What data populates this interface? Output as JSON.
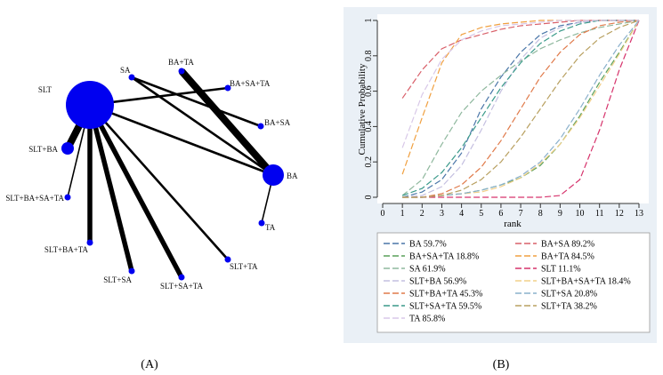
{
  "chart_data": [
    {
      "type": "network",
      "nodes": [
        {
          "id": "SLT",
          "label": "SLT",
          "size": "largest"
        },
        {
          "id": "SA",
          "label": "SA",
          "size": "small"
        },
        {
          "id": "BA+TA",
          "label": "BA+TA",
          "size": "small"
        },
        {
          "id": "BA+SA+TA",
          "label": "BA+SA+TA",
          "size": "small"
        },
        {
          "id": "BA+SA",
          "label": "BA+SA",
          "size": "small"
        },
        {
          "id": "BA",
          "label": "BA",
          "size": "large"
        },
        {
          "id": "TA",
          "label": "TA",
          "size": "small"
        },
        {
          "id": "SLT+BA",
          "label": "SLT+BA",
          "size": "medium"
        },
        {
          "id": "SLT+BA+SA+TA",
          "label": "SLT+BA+SA+TA",
          "size": "small"
        },
        {
          "id": "SLT+BA+TA",
          "label": "SLT+BA+TA",
          "size": "small"
        },
        {
          "id": "SLT+SA",
          "label": "SLT+SA",
          "size": "small"
        },
        {
          "id": "SLT+SA+TA",
          "label": "SLT+SA+TA",
          "size": "small"
        },
        {
          "id": "SLT+TA",
          "label": "SLT+TA",
          "size": "small"
        }
      ],
      "edges": [
        {
          "from": "SLT",
          "to": "SLT+BA",
          "weight": "very thick"
        },
        {
          "from": "SLT",
          "to": "SLT+BA+SA+TA",
          "weight": "thin"
        },
        {
          "from": "SLT",
          "to": "SLT+BA+TA",
          "weight": "thick"
        },
        {
          "from": "SLT",
          "to": "SLT+SA",
          "weight": "thick"
        },
        {
          "from": "SLT",
          "to": "SLT+SA+TA",
          "weight": "thick"
        },
        {
          "from": "SLT",
          "to": "SLT+TA",
          "weight": "medium"
        },
        {
          "from": "SLT",
          "to": "BA",
          "weight": "medium"
        },
        {
          "from": "SLT",
          "to": "BA+SA+TA",
          "weight": "medium"
        },
        {
          "from": "SA",
          "to": "BA",
          "weight": "medium"
        },
        {
          "from": "SA",
          "to": "BA+SA",
          "weight": "medium"
        },
        {
          "from": "BA+TA",
          "to": "BA",
          "weight": "very thick"
        },
        {
          "from": "BA",
          "to": "TA",
          "weight": "thin"
        }
      ],
      "caption": "(A)"
    },
    {
      "type": "line",
      "xlabel": "rank",
      "ylabel": "Cumulative Probability",
      "xlim": [
        0,
        13
      ],
      "ylim": [
        0,
        1
      ],
      "x_ticks": [
        0,
        1,
        2,
        3,
        4,
        5,
        6,
        7,
        8,
        9,
        10,
        11,
        12,
        13
      ],
      "y_ticks": [
        "0",
        "0.2",
        "0.4",
        "0.6",
        "0.8",
        "1"
      ],
      "x": [
        1,
        2,
        3,
        4,
        5,
        6,
        7,
        8,
        9,
        10,
        11,
        12,
        13
      ],
      "grid": false,
      "legend_position": "bottom",
      "series": [
        {
          "name": "BA 59.7%",
          "color": "#4a76a8",
          "values": [
            0.0,
            0.03,
            0.1,
            0.25,
            0.5,
            0.68,
            0.82,
            0.92,
            0.97,
            0.99,
            1.0,
            1.0,
            1.0
          ]
        },
        {
          "name": "BA+SA 89.2%",
          "color": "#d9606a",
          "values": [
            0.56,
            0.72,
            0.84,
            0.89,
            0.92,
            0.95,
            0.97,
            0.98,
            0.99,
            1.0,
            1.0,
            1.0,
            1.0
          ]
        },
        {
          "name": "BA+SA+TA 18.8%",
          "color": "#5aa05a",
          "values": [
            0.0,
            0.0,
            0.01,
            0.02,
            0.04,
            0.07,
            0.11,
            0.18,
            0.3,
            0.46,
            0.65,
            0.82,
            1.0
          ]
        },
        {
          "name": "BA+TA 84.5%",
          "color": "#f0a040",
          "values": [
            0.13,
            0.45,
            0.76,
            0.92,
            0.96,
            0.98,
            0.99,
            1.0,
            1.0,
            1.0,
            1.0,
            1.0,
            1.0
          ]
        },
        {
          "name": "SA 61.9%",
          "color": "#8fb89e",
          "values": [
            0.01,
            0.1,
            0.3,
            0.48,
            0.6,
            0.69,
            0.77,
            0.84,
            0.89,
            0.93,
            0.96,
            0.98,
            1.0
          ]
        },
        {
          "name": "SLT 11.1%",
          "color": "#d6336c",
          "values": [
            0.0,
            0.0,
            0.0,
            0.0,
            0.0,
            0.0,
            0.0,
            0.0,
            0.01,
            0.1,
            0.38,
            0.72,
            1.0
          ]
        },
        {
          "name": "SLT+BA 56.9%",
          "color": "#c4bfe0",
          "values": [
            0.0,
            0.01,
            0.06,
            0.18,
            0.38,
            0.6,
            0.78,
            0.9,
            0.96,
            0.99,
            1.0,
            1.0,
            1.0
          ]
        },
        {
          "name": "SLT+BA+SA+TA 18.4%",
          "color": "#f2d08a",
          "values": [
            0.0,
            0.0,
            0.01,
            0.02,
            0.03,
            0.06,
            0.11,
            0.19,
            0.3,
            0.45,
            0.63,
            0.81,
            1.0
          ]
        },
        {
          "name": "SLT+BA+TA 45.3%",
          "color": "#e07a4a",
          "values": [
            0.0,
            0.0,
            0.02,
            0.07,
            0.17,
            0.32,
            0.5,
            0.68,
            0.82,
            0.92,
            0.97,
            0.99,
            1.0
          ]
        },
        {
          "name": "SLT+SA 20.8%",
          "color": "#8ab0cc",
          "values": [
            0.0,
            0.0,
            0.01,
            0.02,
            0.04,
            0.07,
            0.12,
            0.2,
            0.33,
            0.5,
            0.69,
            0.86,
            1.0
          ]
        },
        {
          "name": "SLT+SA+TA 59.5%",
          "color": "#3a9a8a",
          "values": [
            0.01,
            0.05,
            0.14,
            0.28,
            0.45,
            0.62,
            0.76,
            0.87,
            0.94,
            0.98,
            1.0,
            1.0,
            1.0
          ]
        },
        {
          "name": "SLT+TA 38.2%",
          "color": "#b8a060",
          "values": [
            0.0,
            0.0,
            0.01,
            0.04,
            0.1,
            0.2,
            0.34,
            0.5,
            0.66,
            0.8,
            0.9,
            0.96,
            1.0
          ]
        },
        {
          "name": "TA 85.8%",
          "color": "#d8c8e8",
          "values": [
            0.28,
            0.58,
            0.78,
            0.89,
            0.94,
            0.97,
            0.98,
            0.99,
            1.0,
            1.0,
            1.0,
            1.0,
            1.0
          ]
        }
      ],
      "caption": "(B)"
    }
  ]
}
